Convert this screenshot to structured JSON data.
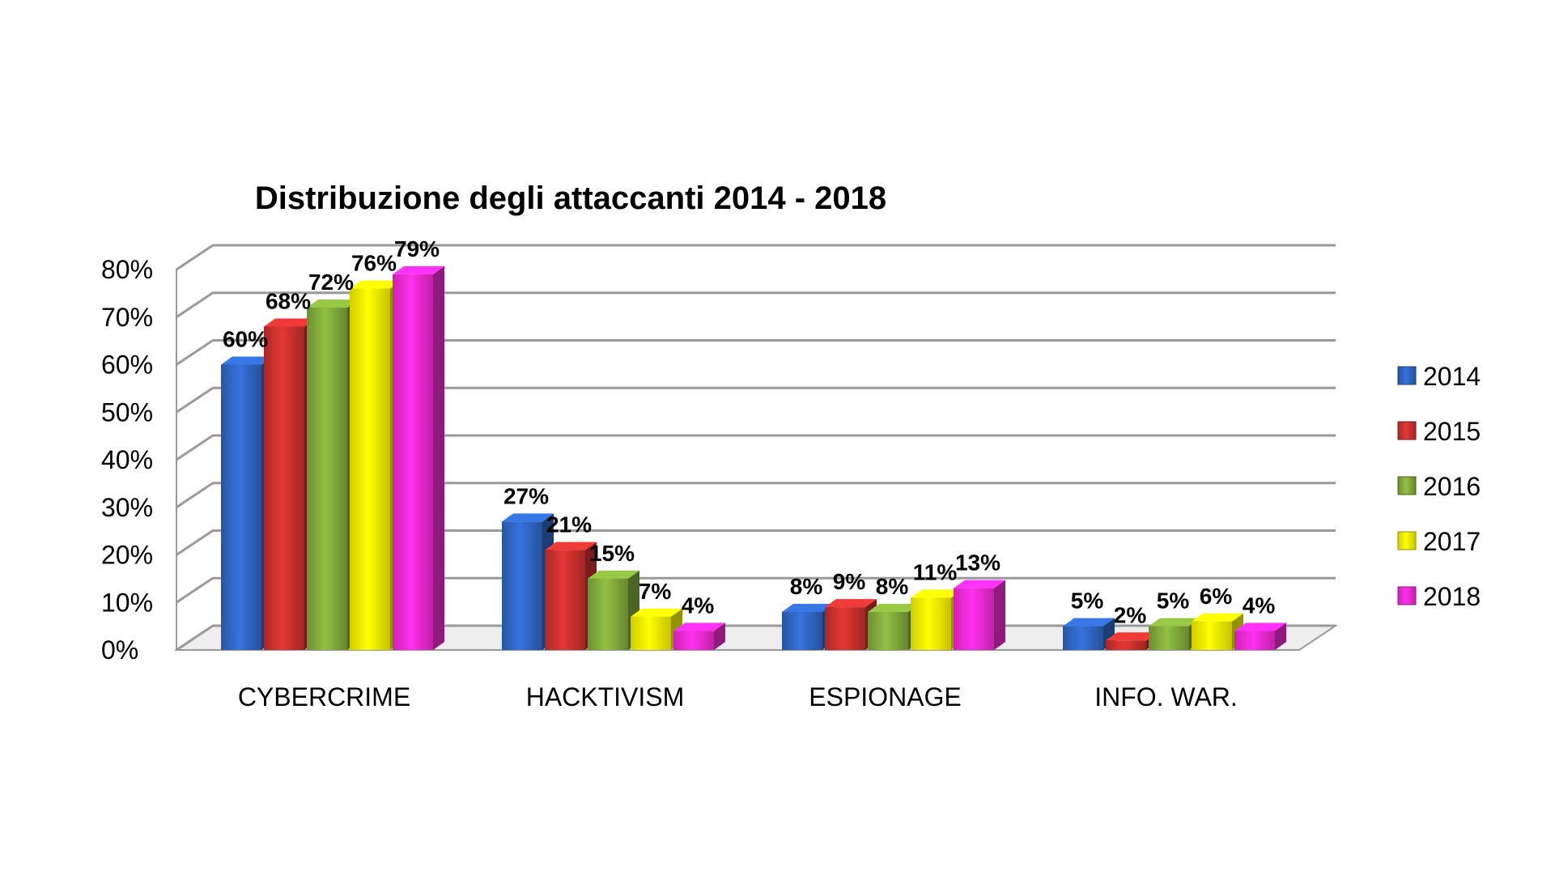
{
  "chart_data": {
    "type": "bar",
    "title": "Distribuzione degli attaccanti 2014 - 2018",
    "xlabel": "",
    "ylabel": "",
    "ylim": [
      0,
      80
    ],
    "yticks": [
      "0%",
      "10%",
      "20%",
      "30%",
      "40%",
      "50%",
      "60%",
      "70%",
      "80%"
    ],
    "grid": true,
    "legend_position": "right",
    "categories": [
      "CYBERCRIME",
      "HACKTIVISM",
      "ESPIONAGE",
      "INFO. WAR."
    ],
    "series": [
      {
        "name": "2014",
        "color": "#2f64c0",
        "values": [
          60,
          27,
          8,
          5
        ],
        "labels": [
          "60%",
          "27%",
          "8%",
          "5%"
        ]
      },
      {
        "name": "2015",
        "color": "#c7302d",
        "values": [
          68,
          21,
          9,
          2
        ],
        "labels": [
          "68%",
          "21%",
          "9%",
          "2%"
        ]
      },
      {
        "name": "2016",
        "color": "#7fa83a",
        "values": [
          72,
          15,
          8,
          5
        ],
        "labels": [
          "72%",
          "15%",
          "8%",
          "5%"
        ]
      },
      {
        "name": "2017",
        "color": "#f6f200",
        "values": [
          76,
          7,
          11,
          6
        ],
        "labels": [
          "76%",
          "7%",
          "11%",
          "6%"
        ]
      },
      {
        "name": "2018",
        "color": "#f02ad0",
        "values": [
          79,
          4,
          13,
          4
        ],
        "labels": [
          "79%",
          "4%",
          "13%",
          "4%"
        ]
      }
    ]
  }
}
